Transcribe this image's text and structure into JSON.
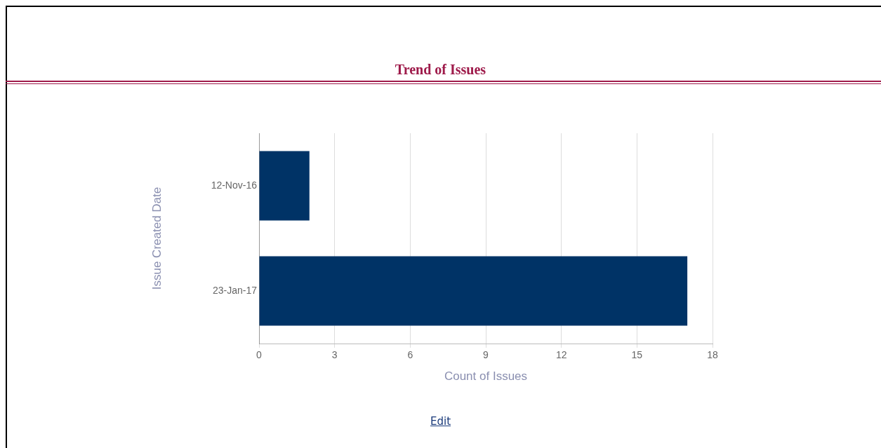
{
  "chart_data": {
    "type": "bar",
    "orientation": "horizontal",
    "title": "Trend of Issues",
    "xlabel": "Count of Issues",
    "ylabel": "Issue Created Date",
    "categories": [
      "12-Nov-16",
      "23-Jan-17"
    ],
    "values": [
      2,
      17
    ],
    "color": "#003366",
    "xlim": [
      0,
      18
    ],
    "xticks": [
      0,
      3,
      6,
      9,
      12,
      15,
      18
    ],
    "grid": "x",
    "legend": false,
    "annotations": [
      "Edit"
    ]
  }
}
